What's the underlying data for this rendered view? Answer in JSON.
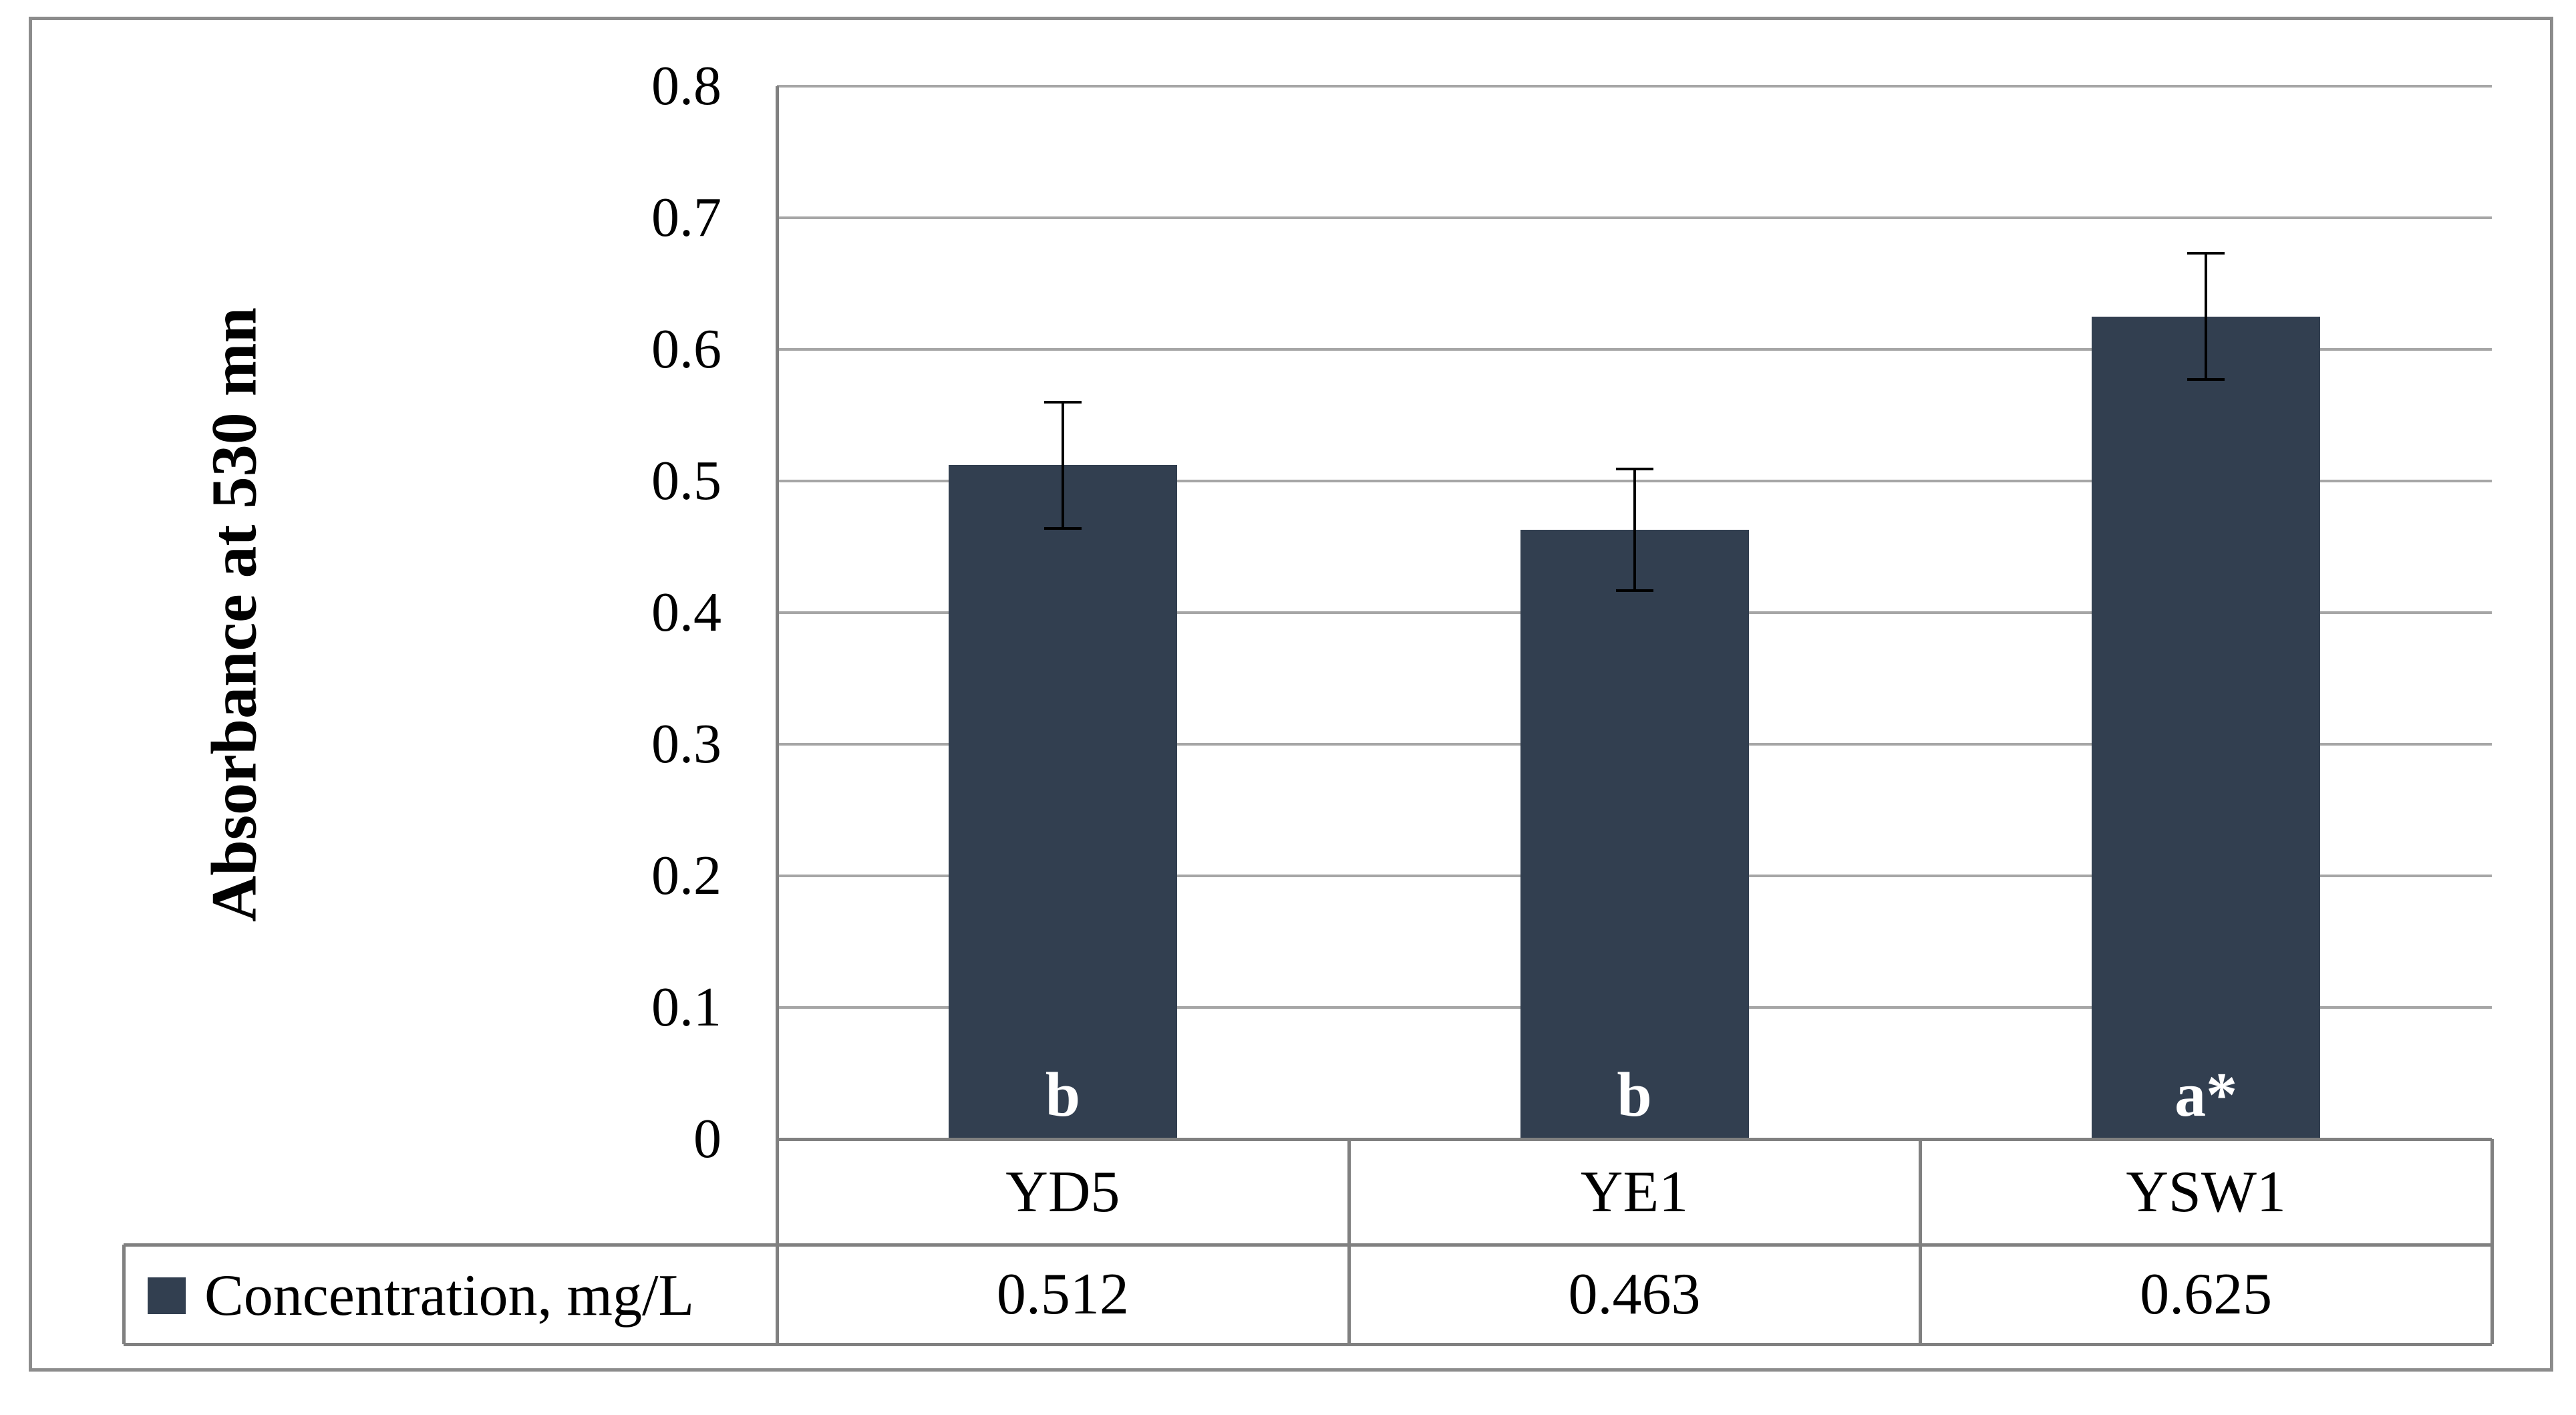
{
  "chart_data": {
    "type": "bar",
    "title": "",
    "ylabel": "Absorbance at 530 mn",
    "xlabel": "",
    "categories": [
      "YD5",
      "YE1",
      "YSW1"
    ],
    "series": [
      {
        "name": "Concentration, mg/L",
        "values": [
          0.512,
          0.463,
          0.625
        ]
      }
    ],
    "errors": [
      0.048,
      0.046,
      0.048
    ],
    "bar_letters": [
      "b",
      "b",
      "a*"
    ],
    "table_values": [
      "0.512",
      "0.463",
      "0.625"
    ],
    "y_ticks": [
      "0.8",
      "0.7",
      "0.6",
      "0.5",
      "0.4",
      "0.3",
      "0.2",
      "0.1",
      "0"
    ],
    "ylim": [
      0,
      0.8
    ],
    "grid": true,
    "legend_position": "bottom-table-row",
    "colors": {
      "bar_fill": "#323F50",
      "legend_swatch": "#323F50",
      "gridline": "#A6A6A6",
      "table_border": "#808080",
      "figure_border": "#8C8C8C",
      "bar_letter": "#FFFFFF",
      "error_bar": "#000000",
      "text": "#000000"
    }
  }
}
